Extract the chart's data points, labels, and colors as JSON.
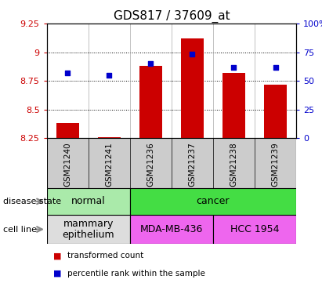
{
  "title": "GDS817 / 37609_at",
  "samples": [
    "GSM21240",
    "GSM21241",
    "GSM21236",
    "GSM21237",
    "GSM21238",
    "GSM21239"
  ],
  "transformed_counts": [
    8.38,
    8.26,
    8.88,
    9.12,
    8.82,
    8.72
  ],
  "percentile_ranks": [
    57,
    55,
    65,
    73,
    62,
    62
  ],
  "ylim_left": [
    8.25,
    9.25
  ],
  "ylim_right": [
    0,
    100
  ],
  "yticks_left": [
    8.25,
    8.5,
    8.75,
    9.0,
    9.25
  ],
  "ytick_labels_left": [
    "8.25",
    "8.5",
    "8.75",
    "9",
    "9.25"
  ],
  "yticks_right": [
    0,
    25,
    50,
    75,
    100
  ],
  "ytick_labels_right": [
    "0",
    "25",
    "50",
    "75",
    "100%"
  ],
  "bar_color": "#cc0000",
  "dot_color": "#0000cc",
  "disease_state_groups": [
    {
      "label": "normal",
      "start": 0,
      "end": 2,
      "color": "#aaeaaa"
    },
    {
      "label": "cancer",
      "start": 2,
      "end": 6,
      "color": "#44dd44"
    }
  ],
  "cell_line_groups": [
    {
      "label": "mammary\nepithelium",
      "start": 0,
      "end": 2,
      "color": "#dddddd"
    },
    {
      "label": "MDA-MB-436",
      "start": 2,
      "end": 4,
      "color": "#ee66ee"
    },
    {
      "label": "HCC 1954",
      "start": 4,
      "end": 6,
      "color": "#ee66ee"
    }
  ],
  "legend_bar_label": "transformed count",
  "legend_dot_label": "percentile rank within the sample",
  "tick_color_left": "#cc0000",
  "tick_color_right": "#0000cc",
  "gray_label_bg": "#cccccc",
  "border_color": "#888888"
}
